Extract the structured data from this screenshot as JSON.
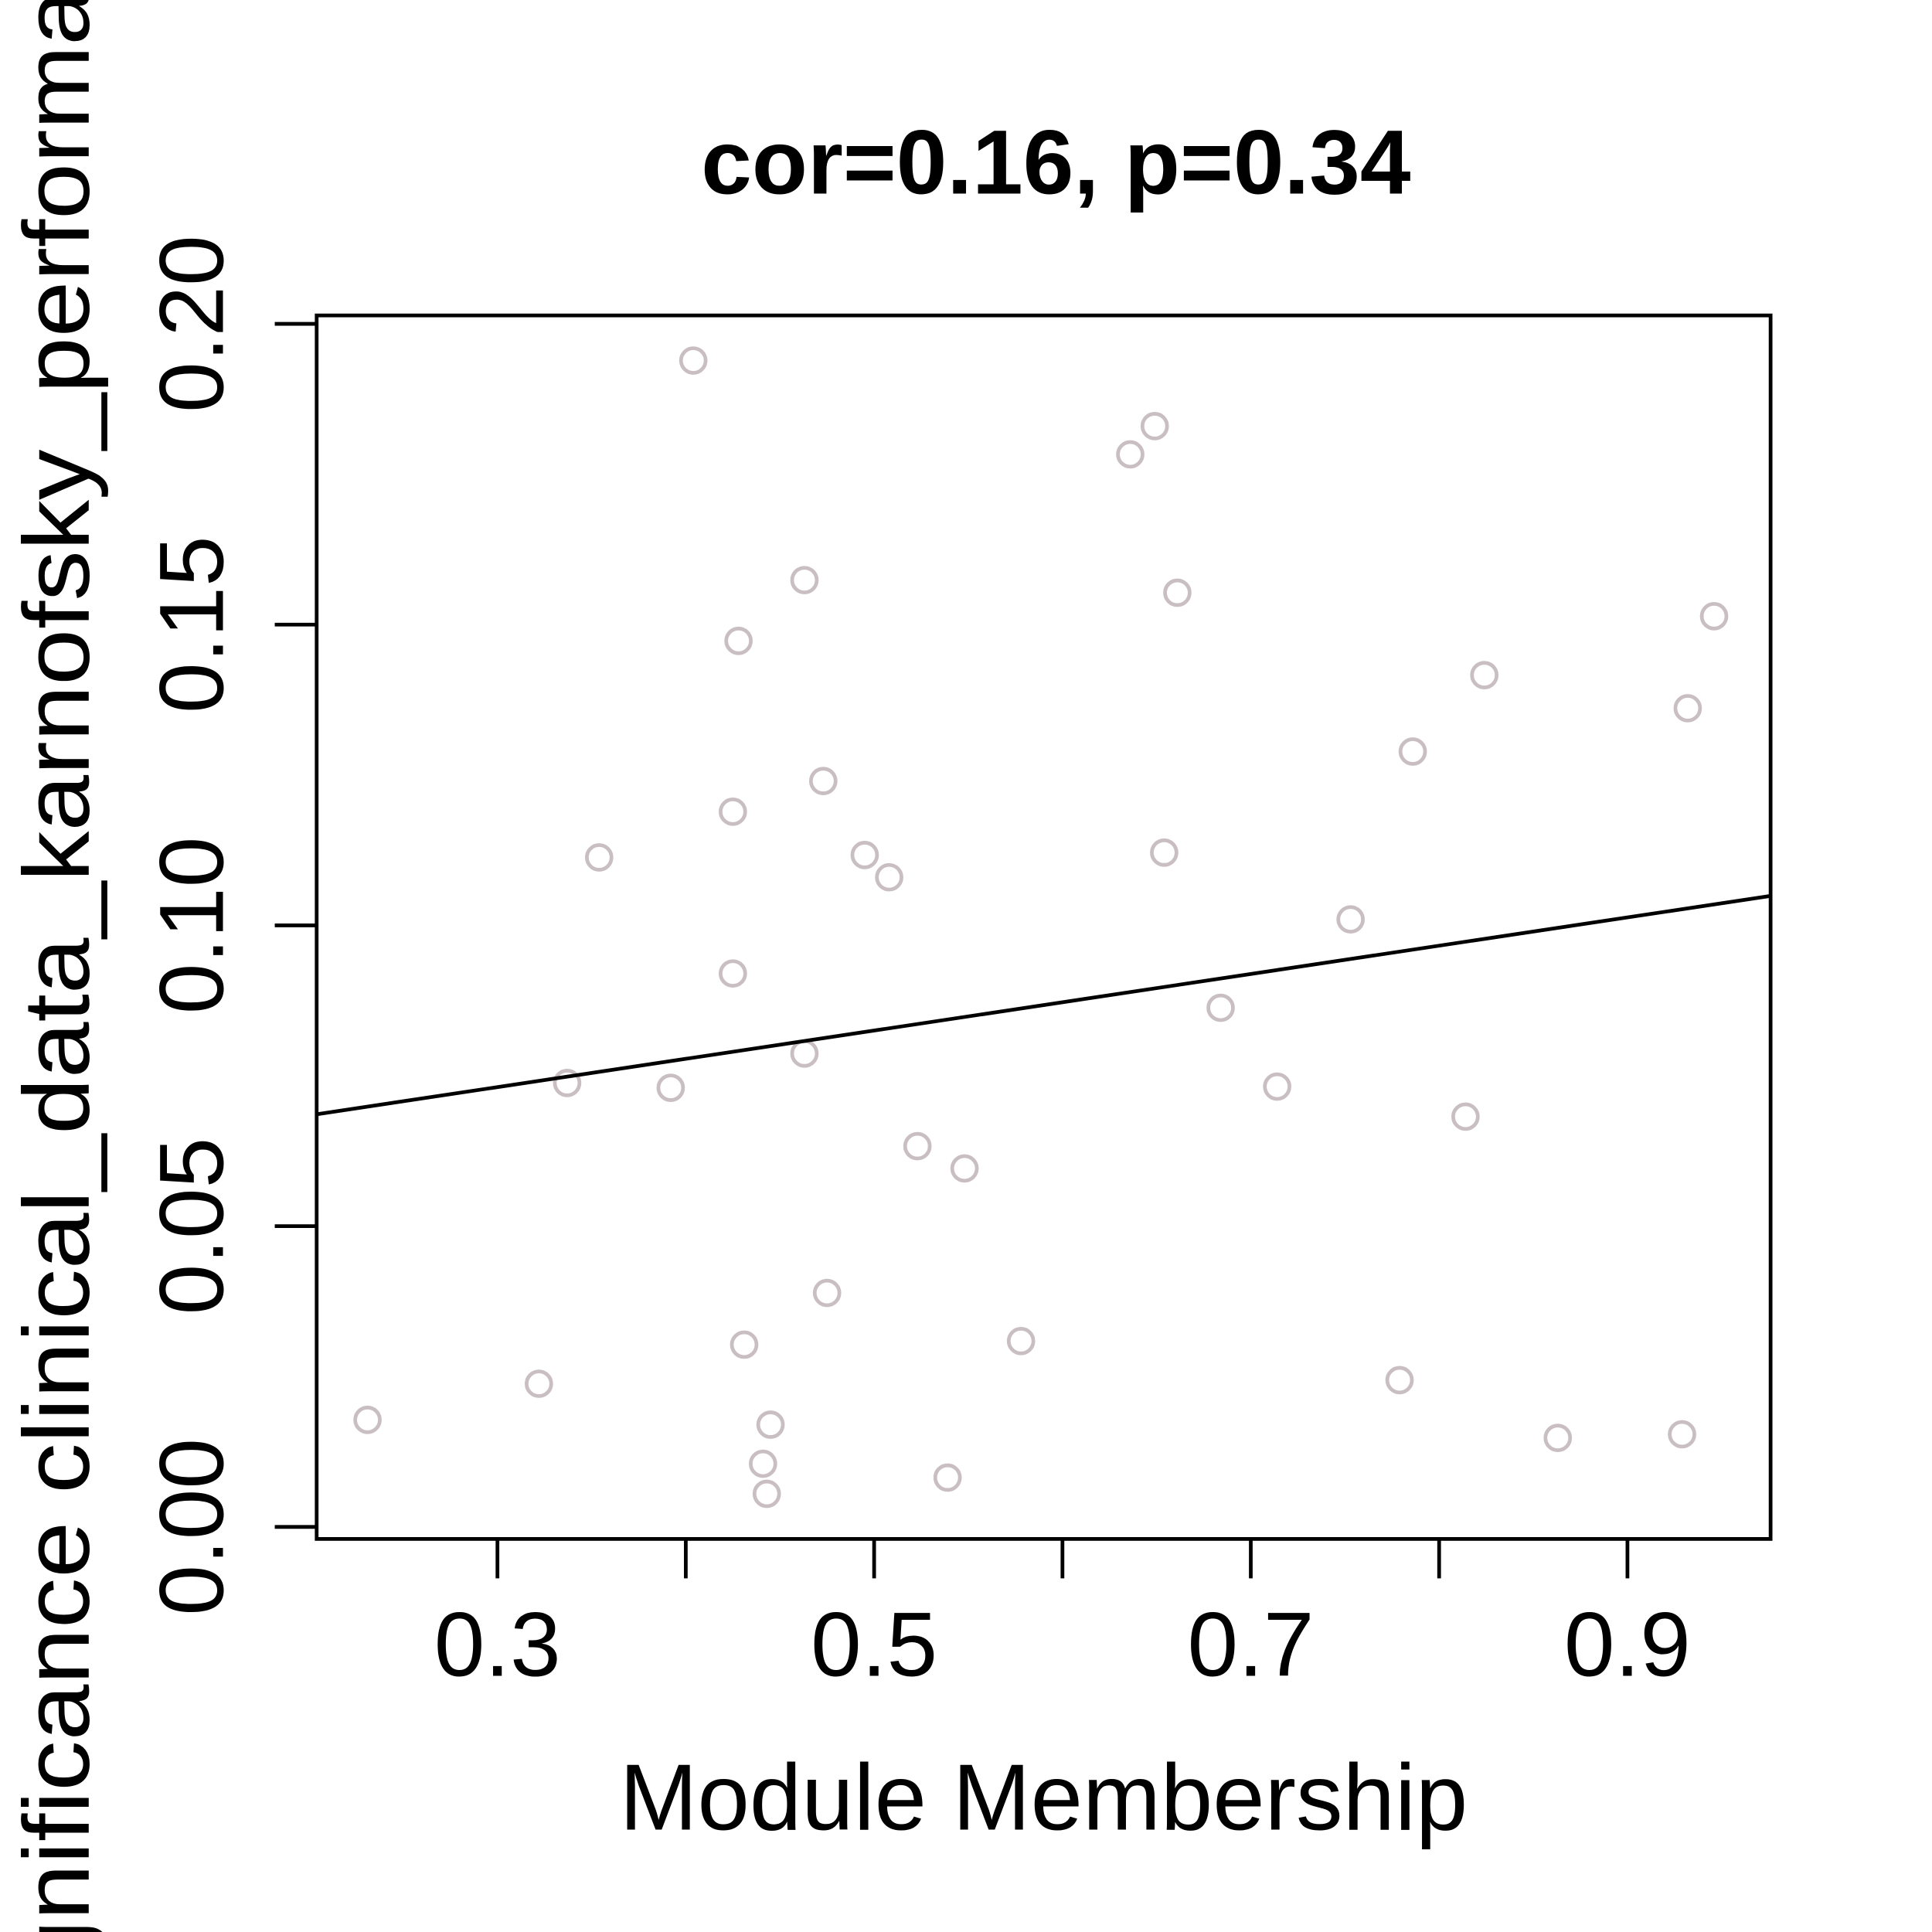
{
  "chart_data": {
    "type": "scatter",
    "title": "cor=0.16, p=0.34",
    "x_label": "Module Membership",
    "y_label": "gnificance clinical_data_karnofsky_performar",
    "x": [
      0.231,
      0.322,
      0.337,
      0.354,
      0.392,
      0.404,
      0.425,
      0.425,
      0.428,
      0.431,
      0.441,
      0.443,
      0.445,
      0.463,
      0.463,
      0.473,
      0.475,
      0.495,
      0.508,
      0.523,
      0.539,
      0.548,
      0.578,
      0.636,
      0.649,
      0.654,
      0.661,
      0.684,
      0.714,
      0.753,
      0.779,
      0.786,
      0.814,
      0.824,
      0.863,
      0.929,
      0.932,
      0.946
    ],
    "values": [
      0.0178,
      0.0238,
      0.0738,
      0.1113,
      0.073,
      0.1939,
      0.1189,
      0.092,
      0.1473,
      0.0303,
      0.0105,
      0.0055,
      0.017,
      0.1574,
      0.0787,
      0.124,
      0.0389,
      0.1117,
      0.108,
      0.0633,
      0.0082,
      0.0596,
      0.0309,
      0.1783,
      0.183,
      0.1121,
      0.1553,
      0.0863,
      0.0732,
      0.101,
      0.0244,
      0.1289,
      0.0682,
      0.1416,
      0.0148,
      0.0154,
      0.1361,
      0.1514
    ],
    "color": "#c9bfc3",
    "fit_line": {
      "x": [
        0.204,
        0.976
      ],
      "y": [
        0.0686,
        0.1049
      ],
      "color": "#000000"
    },
    "xlim": [
      0.204,
      0.976
    ],
    "ylim": [
      -0.002,
      0.2014
    ],
    "xticks": [
      0.3,
      0.5,
      0.7,
      0.9
    ],
    "xminorticks": [
      0.4,
      0.6,
      0.8
    ],
    "yticks": [
      {
        "value": 0,
        "label": "0.00"
      },
      0.05,
      {
        "value": 0.1,
        "label": "0.10"
      },
      0.15,
      {
        "value": 0.2,
        "label": "0.20"
      }
    ]
  }
}
